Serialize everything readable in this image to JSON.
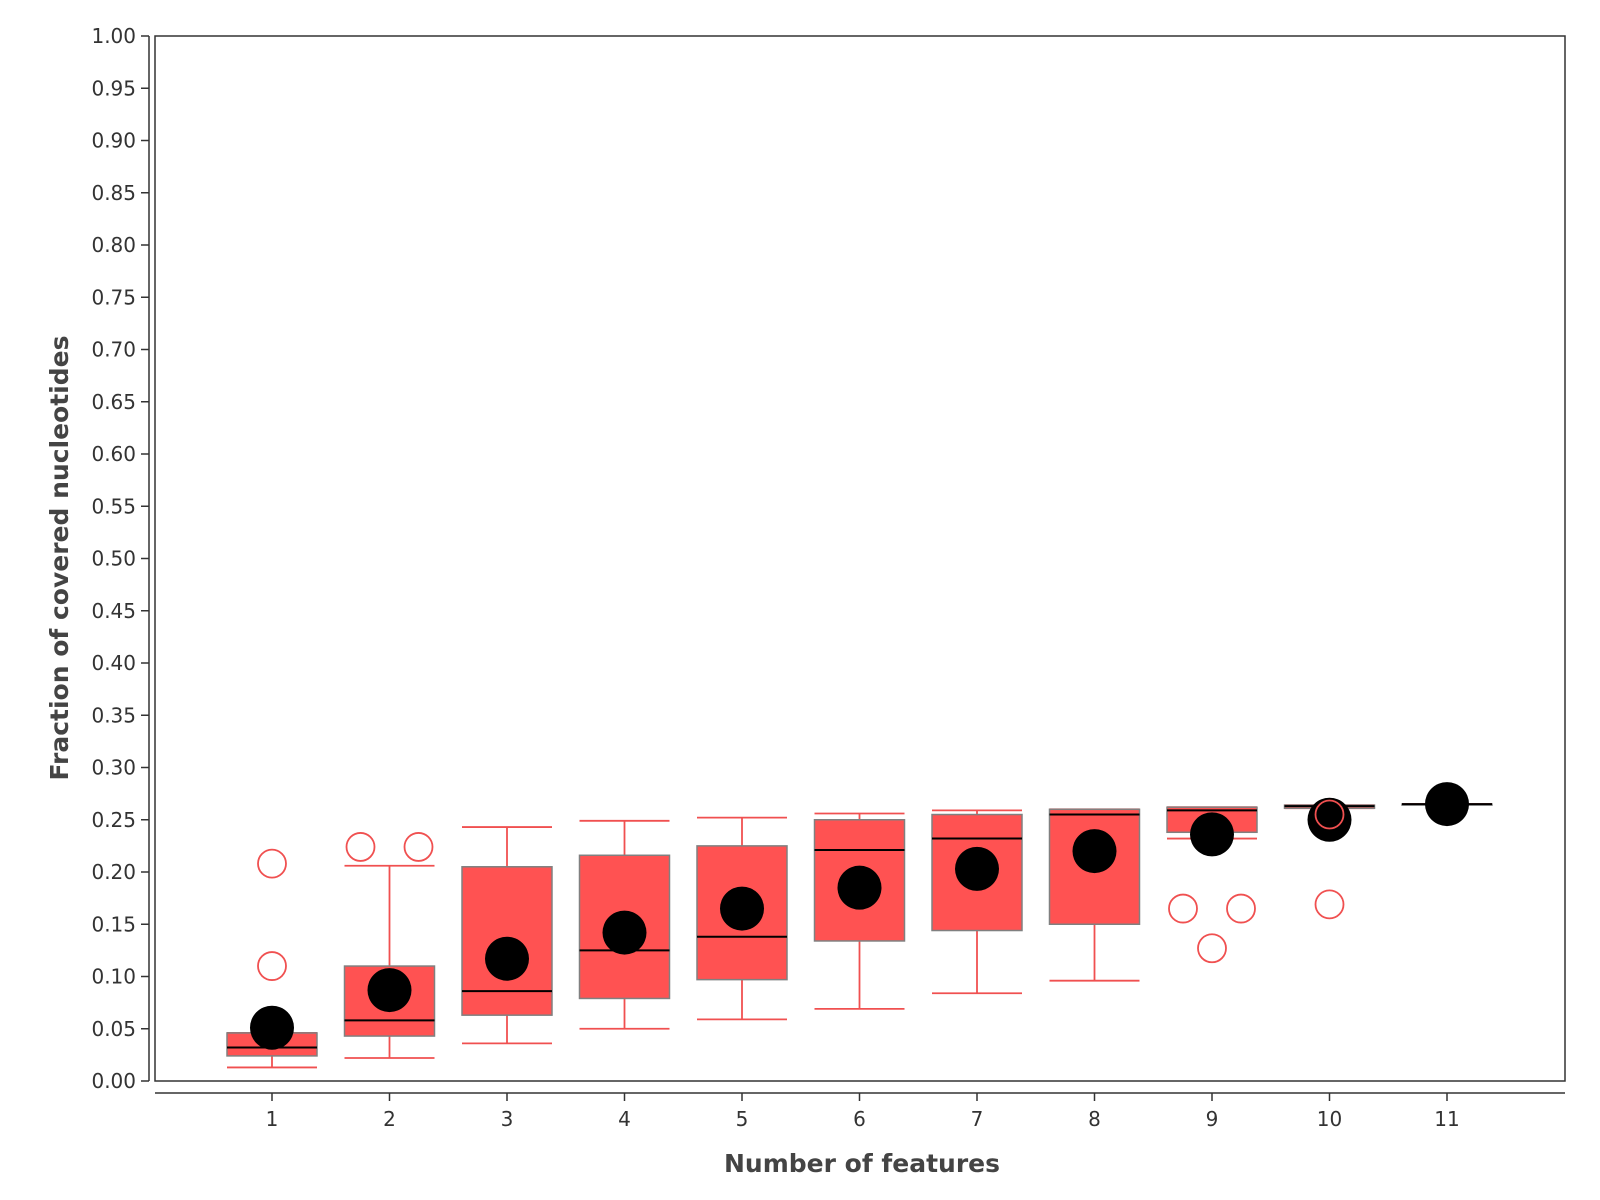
{
  "chart_data": {
    "type": "box",
    "xlabel": "Number of features",
    "ylabel": "Fraction of covered nucleotides",
    "ylim": [
      0,
      1
    ],
    "yticks": [
      "0.00",
      "0.05",
      "0.10",
      "0.15",
      "0.20",
      "0.25",
      "0.30",
      "0.35",
      "0.40",
      "0.45",
      "0.50",
      "0.55",
      "0.60",
      "0.65",
      "0.70",
      "0.75",
      "0.80",
      "0.85",
      "0.90",
      "0.95",
      "1.00"
    ],
    "categories": [
      "1",
      "2",
      "3",
      "4",
      "5",
      "6",
      "7",
      "8",
      "9",
      "10",
      "11"
    ],
    "boxes": [
      {
        "category": "1",
        "whisker_low": 0.013,
        "q1": 0.024,
        "median": 0.032,
        "q3": 0.046,
        "whisker_high": 0.046,
        "mean": 0.051,
        "outliers": [
          {
            "value": 0.208,
            "offset": 0
          },
          {
            "value": 0.11,
            "offset": 0
          }
        ]
      },
      {
        "category": "2",
        "whisker_low": 0.022,
        "q1": 0.043,
        "median": 0.058,
        "q3": 0.11,
        "whisker_high": 0.206,
        "mean": 0.087,
        "outliers": [
          {
            "value": 0.224,
            "offset": -1
          },
          {
            "value": 0.224,
            "offset": 1
          }
        ]
      },
      {
        "category": "3",
        "whisker_low": 0.036,
        "q1": 0.063,
        "median": 0.086,
        "q3": 0.205,
        "whisker_high": 0.243,
        "mean": 0.117,
        "outliers": []
      },
      {
        "category": "4",
        "whisker_low": 0.05,
        "q1": 0.079,
        "median": 0.125,
        "q3": 0.216,
        "whisker_high": 0.249,
        "mean": 0.142,
        "outliers": []
      },
      {
        "category": "5",
        "whisker_low": 0.059,
        "q1": 0.097,
        "median": 0.138,
        "q3": 0.225,
        "whisker_high": 0.252,
        "mean": 0.165,
        "outliers": []
      },
      {
        "category": "6",
        "whisker_low": 0.069,
        "q1": 0.134,
        "median": 0.221,
        "q3": 0.25,
        "whisker_high": 0.256,
        "mean": 0.185,
        "outliers": []
      },
      {
        "category": "7",
        "whisker_low": 0.084,
        "q1": 0.144,
        "median": 0.232,
        "q3": 0.255,
        "whisker_high": 0.259,
        "mean": 0.203,
        "outliers": []
      },
      {
        "category": "8",
        "whisker_low": 0.096,
        "q1": 0.15,
        "median": 0.255,
        "q3": 0.26,
        "whisker_high": 0.26,
        "mean": 0.22,
        "outliers": []
      },
      {
        "category": "9",
        "whisker_low": 0.232,
        "q1": 0.238,
        "median": 0.259,
        "q3": 0.262,
        "whisker_high": 0.262,
        "mean": 0.236,
        "outliers": [
          {
            "value": 0.165,
            "offset": -1
          },
          {
            "value": 0.165,
            "offset": 1
          },
          {
            "value": 0.127,
            "offset": 0
          }
        ]
      },
      {
        "category": "10",
        "whisker_low": 0.261,
        "q1": 0.261,
        "median": 0.263,
        "q3": 0.264,
        "whisker_high": 0.264,
        "mean": 0.25,
        "outliers": [
          {
            "value": 0.255,
            "offset": 0
          },
          {
            "value": 0.169,
            "offset": 0
          }
        ]
      },
      {
        "category": "11",
        "whisker_low": 0.265,
        "q1": 0.265,
        "median": 0.265,
        "q3": 0.265,
        "whisker_high": 0.265,
        "mean": 0.265,
        "outliers": []
      }
    ],
    "colors": {
      "box_fill": "#ff5252",
      "box_border": "#808080",
      "whisker": "#f05050",
      "median": "#000000",
      "mean": "#000000",
      "outlier": "#f05050",
      "axis": "#333333"
    },
    "grid": false,
    "legend": "none"
  }
}
